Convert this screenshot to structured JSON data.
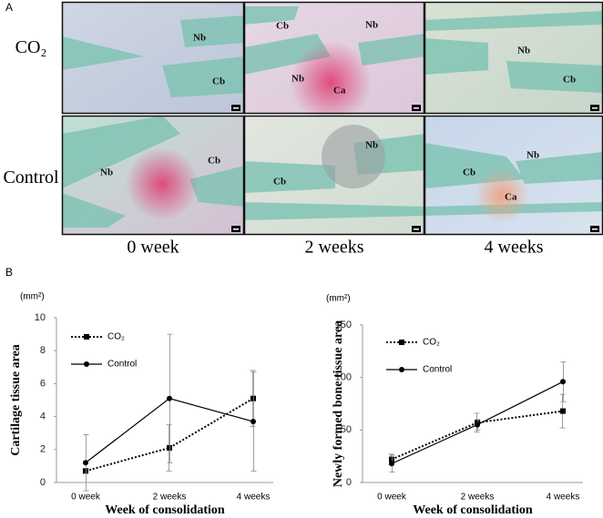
{
  "panel_a": {
    "label": "A",
    "rows": [
      "CO₂",
      "Control"
    ],
    "columns": [
      "0 week",
      "2 weeks",
      "4 weeks"
    ],
    "images": [
      {
        "labels": [
          "Nb",
          "Cb"
        ]
      },
      {
        "labels": [
          "Cb",
          "Nb",
          "Nb",
          "Ca"
        ]
      },
      {
        "labels": [
          "Nb",
          "Cb"
        ]
      },
      {
        "labels": [
          "Nb",
          "Cb"
        ]
      },
      {
        "labels": [
          "Nb",
          "Cb"
        ]
      },
      {
        "labels": [
          "Nb",
          "Cb",
          "Ca"
        ]
      }
    ]
  },
  "panel_b": {
    "label": "B"
  },
  "chart_data": [
    {
      "type": "line",
      "y_unit": "(mm²)",
      "y_label": "Cartilage tissue area",
      "x_label": "Week of consolidation",
      "categories": [
        "0 week",
        "2 weeks",
        "4 weeks"
      ],
      "ylim": [
        0,
        10
      ],
      "yticks": [
        0,
        2,
        4,
        6,
        8,
        10
      ],
      "series": [
        {
          "name": "CO₂",
          "color": "#000000",
          "line_style": "dotted",
          "marker": "square",
          "values": [
            0.7,
            2.1,
            5.1
          ],
          "errors": [
            0.1,
            1.4,
            1.7
          ]
        },
        {
          "name": "Control",
          "color": "#000000",
          "line_style": "solid",
          "marker": "circle",
          "values": [
            1.2,
            5.1,
            3.7
          ],
          "errors": [
            1.7,
            3.9,
            3.0
          ]
        }
      ]
    },
    {
      "type": "line",
      "y_unit": "(mm²)",
      "y_label": "Newly formed bone tissue area",
      "x_label": "Week of consolidation",
      "categories": [
        "0 week",
        "2 weeks",
        "4 weeks"
      ],
      "ylim": [
        0,
        150
      ],
      "yticks": [
        0,
        50,
        100,
        150
      ],
      "series": [
        {
          "name": "CO₂",
          "color": "#000000",
          "line_style": "dotted",
          "marker": "square",
          "values": [
            22,
            57,
            68
          ],
          "errors": [
            5,
            9,
            16
          ]
        },
        {
          "name": "Control",
          "color": "#000000",
          "line_style": "solid",
          "marker": "circle",
          "values": [
            18,
            55,
            96
          ],
          "errors": [
            8,
            5,
            19
          ]
        }
      ]
    }
  ]
}
